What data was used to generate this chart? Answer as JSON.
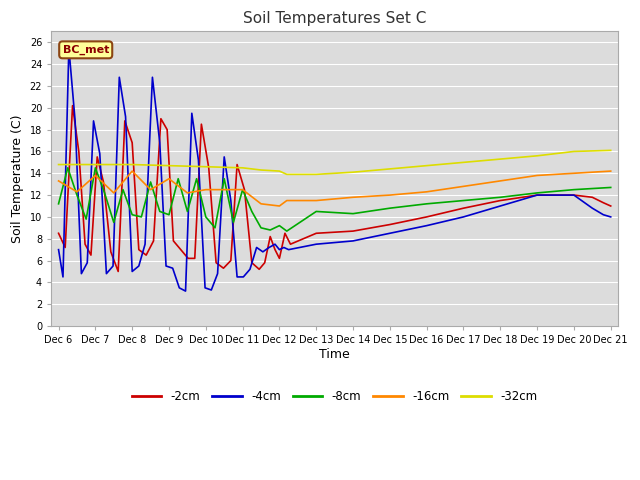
{
  "title": "Soil Temperatures Set C",
  "xlabel": "Time",
  "ylabel": "Soil Temperature (C)",
  "ylim": [
    0,
    27
  ],
  "yticks": [
    0,
    2,
    4,
    6,
    8,
    10,
    12,
    14,
    16,
    18,
    20,
    22,
    24,
    26
  ],
  "annotation": "BC_met",
  "fig_color": "#ffffff",
  "plot_bg_color": "#dcdcdc",
  "grid_color": "#ffffff",
  "lines": {
    "neg2cm": {
      "color": "#cc0000",
      "label": "-2cm",
      "x": [
        0,
        0.18,
        0.38,
        0.55,
        0.72,
        0.88,
        1.05,
        1.22,
        1.42,
        1.62,
        1.8,
        2.0,
        2.18,
        2.38,
        2.58,
        2.78,
        2.95,
        3.12,
        3.32,
        3.52,
        3.7,
        3.88,
        4.08,
        4.28,
        4.48,
        4.68,
        4.85,
        5.05,
        5.25,
        5.45,
        5.6,
        5.75,
        5.88,
        6.0,
        6.15,
        6.3,
        7.0,
        8.0,
        9.0,
        10.0,
        11.0,
        12.0,
        13.0,
        14.0,
        14.5,
        14.8,
        15.0
      ],
      "y": [
        8.5,
        7.2,
        20.2,
        16.0,
        7.5,
        6.5,
        15.5,
        13.2,
        6.8,
        5.0,
        18.8,
        16.8,
        7.0,
        6.5,
        7.8,
        19.0,
        18.0,
        7.8,
        7.0,
        6.2,
        6.2,
        18.5,
        14.5,
        5.8,
        5.3,
        6.0,
        14.8,
        12.5,
        5.8,
        5.2,
        5.8,
        8.2,
        7.0,
        6.2,
        8.5,
        7.5,
        8.5,
        8.7,
        9.3,
        10.0,
        10.8,
        11.5,
        12.0,
        12.0,
        11.8,
        11.3,
        11.0
      ]
    },
    "neg4cm": {
      "color": "#0000cc",
      "label": "-4cm",
      "x": [
        0,
        0.12,
        0.28,
        0.45,
        0.62,
        0.78,
        0.95,
        1.12,
        1.3,
        1.48,
        1.65,
        1.82,
        2.0,
        2.18,
        2.35,
        2.55,
        2.75,
        2.92,
        3.1,
        3.28,
        3.45,
        3.62,
        3.8,
        3.98,
        4.15,
        4.32,
        4.5,
        4.68,
        4.85,
        5.02,
        5.2,
        5.38,
        5.55,
        5.72,
        5.88,
        6.0,
        6.12,
        6.25,
        7.0,
        8.0,
        9.0,
        10.0,
        11.0,
        12.0,
        13.0,
        14.0,
        14.5,
        14.8,
        15.0
      ],
      "y": [
        7.0,
        4.5,
        25.5,
        18.8,
        4.8,
        5.8,
        18.8,
        15.8,
        4.8,
        5.5,
        22.8,
        19.2,
        5.0,
        5.5,
        7.5,
        22.8,
        16.8,
        5.5,
        5.3,
        3.5,
        3.2,
        19.5,
        15.2,
        3.5,
        3.3,
        4.8,
        15.5,
        11.5,
        4.5,
        4.5,
        5.2,
        7.2,
        6.8,
        7.2,
        7.5,
        7.0,
        7.2,
        7.0,
        7.5,
        7.8,
        8.5,
        9.2,
        10.0,
        11.0,
        12.0,
        12.0,
        10.8,
        10.2,
        10.0
      ]
    },
    "neg8cm": {
      "color": "#00aa00",
      "label": "-8cm",
      "x": [
        0,
        0.25,
        0.5,
        0.75,
        1.0,
        1.25,
        1.5,
        1.75,
        2.0,
        2.25,
        2.5,
        2.75,
        3.0,
        3.25,
        3.5,
        3.75,
        4.0,
        4.25,
        4.5,
        4.75,
        5.0,
        5.25,
        5.5,
        5.75,
        6.0,
        6.2,
        7.0,
        8.0,
        9.0,
        10.0,
        11.0,
        12.0,
        13.0,
        14.0,
        15.0
      ],
      "y": [
        11.2,
        14.5,
        12.0,
        9.8,
        14.5,
        12.2,
        9.5,
        12.5,
        10.2,
        10.0,
        13.2,
        10.5,
        10.2,
        13.5,
        10.5,
        13.5,
        10.0,
        9.0,
        13.5,
        9.5,
        12.5,
        10.5,
        9.0,
        8.8,
        9.2,
        8.7,
        10.5,
        10.3,
        10.8,
        11.2,
        11.5,
        11.8,
        12.2,
        12.5,
        12.7
      ]
    },
    "neg16cm": {
      "color": "#ff8800",
      "label": "-16cm",
      "x": [
        0,
        0.5,
        1.0,
        1.5,
        2.0,
        2.5,
        3.0,
        3.5,
        4.0,
        4.5,
        5.0,
        5.5,
        6.0,
        6.2,
        7.0,
        8.0,
        9.0,
        10.0,
        11.0,
        12.0,
        13.0,
        14.0,
        15.0
      ],
      "y": [
        13.3,
        12.3,
        13.8,
        12.2,
        14.2,
        12.5,
        13.5,
        12.2,
        12.5,
        12.5,
        12.5,
        11.2,
        11.0,
        11.5,
        11.5,
        11.8,
        12.0,
        12.3,
        12.8,
        13.3,
        13.8,
        14.0,
        14.2
      ]
    },
    "neg32cm": {
      "color": "#dddd00",
      "label": "-32cm",
      "x": [
        0,
        1.0,
        2.0,
        3.0,
        4.0,
        5.0,
        5.5,
        6.0,
        6.2,
        7.0,
        8.0,
        9.0,
        10.0,
        11.0,
        12.0,
        13.0,
        14.0,
        15.0
      ],
      "y": [
        14.8,
        14.8,
        14.8,
        14.7,
        14.6,
        14.5,
        14.3,
        14.2,
        13.9,
        13.9,
        14.1,
        14.4,
        14.7,
        15.0,
        15.3,
        15.6,
        16.0,
        16.1
      ]
    }
  },
  "xtick_labels": [
    "Dec 6",
    "Dec 7",
    "Dec 8",
    "Dec 9",
    "Dec 10",
    "Dec 11",
    "Dec 12",
    "Dec 13",
    "Dec 14",
    "Dec 15",
    "Dec 16",
    "Dec 17",
    "Dec 18",
    "Dec 19",
    "Dec 20",
    "Dec 21"
  ],
  "xtick_positions": [
    0,
    1,
    2,
    3,
    4,
    5,
    6,
    7,
    8,
    9,
    10,
    11,
    12,
    13,
    14,
    15
  ]
}
